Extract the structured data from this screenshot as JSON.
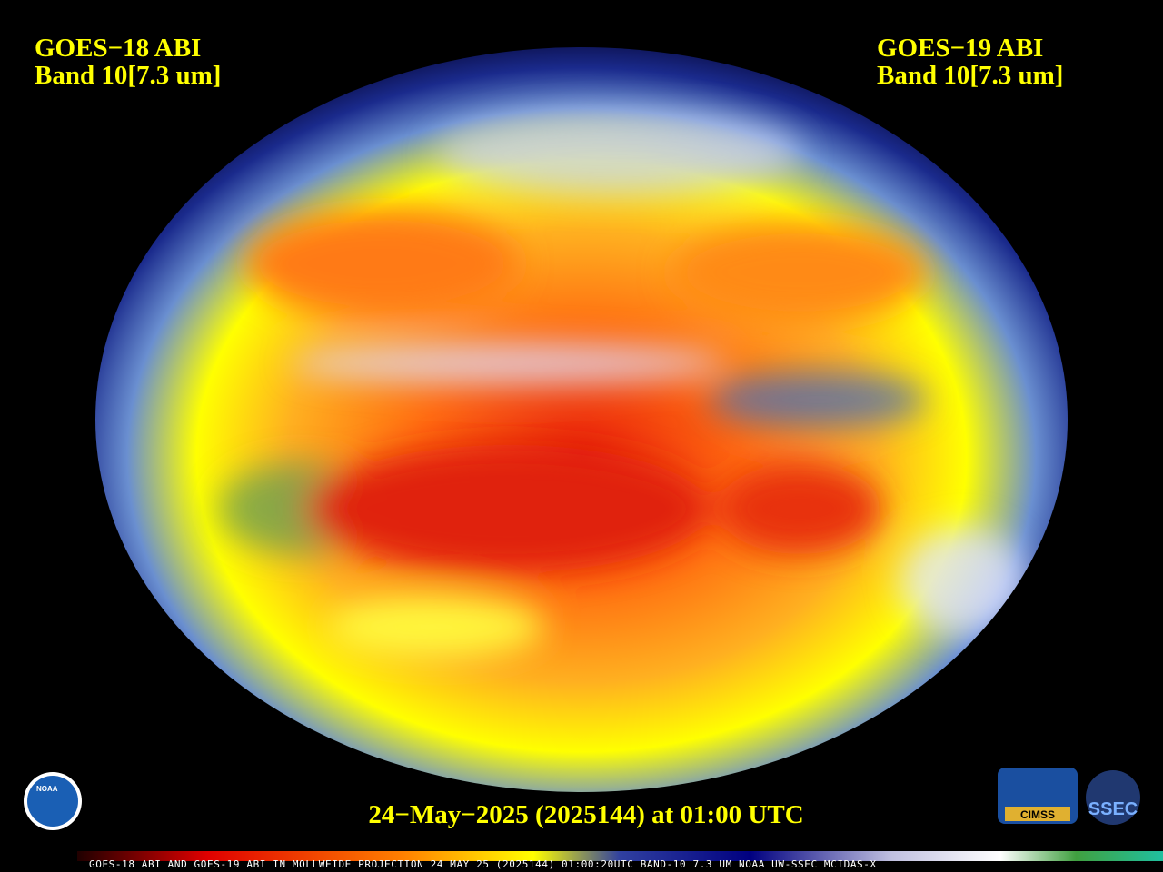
{
  "left_label": {
    "satellite": "GOES−18 ABI",
    "band": "Band 10[7.3 um]"
  },
  "right_label": {
    "satellite": "GOES−19 ABI",
    "band": "Band 10[7.3 um]"
  },
  "timestamp": "24−May−2025 (2025144) at 01:00 UTC",
  "colorbar_caption": "GOES-18 ABI AND GOES-19 ABI IN MOLLWEIDE PROJECTION 24 MAY 25 (2025144) 01:00:20UTC BAND-10 7.3 UM NOAA UW-SSEC MCIDAS-X",
  "logos": {
    "noaa": "NOAA",
    "cimss": "CIMSS",
    "ssec": "SSEC"
  }
}
